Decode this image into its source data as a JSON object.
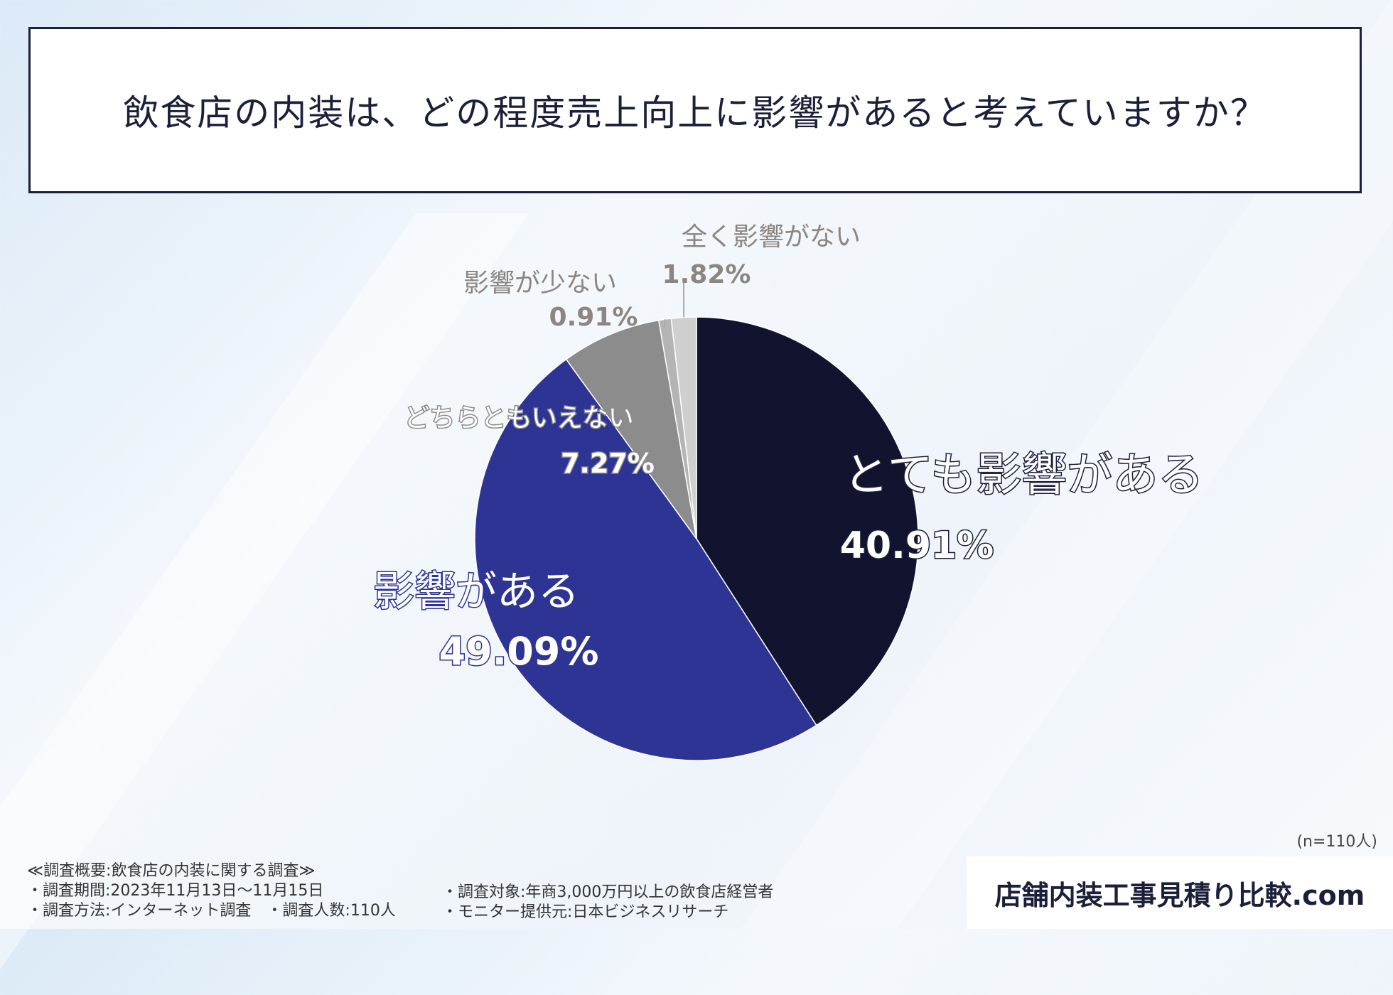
{
  "title": "飲食店の内装は、どの程度売上向上に影響があると考えていますか？",
  "sample_size": "(n=110人)",
  "chart_data": {
    "type": "pie",
    "slices": [
      {
        "label": "とても影響がある",
        "value": 40.91,
        "value_text": "40.91%",
        "color": "#12142f"
      },
      {
        "label": "影響がある",
        "value": 49.09,
        "value_text": "49.09%",
        "color": "#2e3494"
      },
      {
        "label": "どちらともいえない",
        "value": 7.27,
        "value_text": "7.27%",
        "color": "#8c8c8c"
      },
      {
        "label": "影響が少ない",
        "value": 0.91,
        "value_text": "0.91%",
        "color": "#b4b4b4"
      },
      {
        "label": "全く影響がない",
        "value": 1.82,
        "value_text": "1.82%",
        "color": "#cfcfcf"
      }
    ]
  },
  "survey": {
    "heading": "≪調査概要:飲食店の内装に関する調査≫",
    "period": "・調査期間:2023年11月13日～11月15日",
    "method": "・調査方法:インターネット調査　・調査人数:110人",
    "target": "・調査対象:年商3,000万円以上の飲食店経営者",
    "provider": "・モニター提供元:日本ビジネスリサーチ"
  },
  "brand": "店舗内装工事見積り比較.com"
}
